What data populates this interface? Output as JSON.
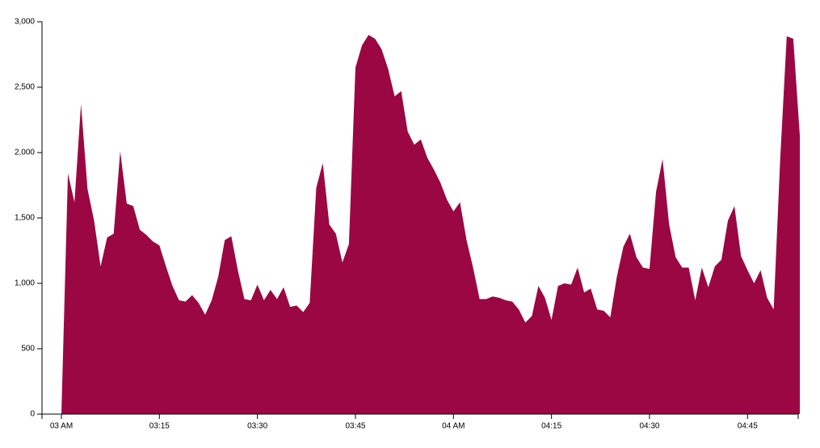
{
  "chart_data": {
    "type": "area",
    "color": "#9b0742",
    "x": [
      "03:00",
      "03:01",
      "03:02",
      "03:03",
      "03:04",
      "03:05",
      "03:06",
      "03:07",
      "03:08",
      "03:09",
      "03:10",
      "03:11",
      "03:12",
      "03:13",
      "03:14",
      "03:15",
      "03:16",
      "03:17",
      "03:18",
      "03:19",
      "03:20",
      "03:21",
      "03:22",
      "03:23",
      "03:24",
      "03:25",
      "03:26",
      "03:27",
      "03:28",
      "03:29",
      "03:30",
      "03:31",
      "03:32",
      "03:33",
      "03:34",
      "03:35",
      "03:36",
      "03:37",
      "03:38",
      "03:39",
      "03:40",
      "03:41",
      "03:42",
      "03:43",
      "03:44",
      "03:45",
      "03:46",
      "03:47",
      "03:48",
      "03:49",
      "03:50",
      "03:51",
      "03:52",
      "03:53",
      "03:54",
      "03:55",
      "03:56",
      "03:57",
      "03:58",
      "03:59",
      "04:00",
      "04:01",
      "04:02",
      "04:03",
      "04:04",
      "04:05",
      "04:06",
      "04:07",
      "04:08",
      "04:09",
      "04:10",
      "04:11",
      "04:12",
      "04:13",
      "04:14",
      "04:15",
      "04:16",
      "04:17",
      "04:18",
      "04:19",
      "04:20",
      "04:21",
      "04:22",
      "04:23",
      "04:24",
      "04:25",
      "04:26",
      "04:27",
      "04:28",
      "04:29",
      "04:30",
      "04:31",
      "04:32",
      "04:33",
      "04:34",
      "04:35",
      "04:36",
      "04:37",
      "04:38",
      "04:39",
      "04:40",
      "04:41",
      "04:42",
      "04:43",
      "04:44",
      "04:45",
      "04:46",
      "04:47",
      "04:48",
      "04:49",
      "04:50",
      "04:51",
      "04:52",
      "04:53"
    ],
    "values": [
      0,
      1840,
      1620,
      2370,
      1720,
      1480,
      1130,
      1350,
      1380,
      2010,
      1610,
      1590,
      1410,
      1370,
      1320,
      1290,
      1130,
      980,
      870,
      860,
      910,
      850,
      760,
      870,
      1050,
      1330,
      1360,
      1100,
      880,
      870,
      990,
      870,
      950,
      880,
      970,
      820,
      830,
      780,
      850,
      1730,
      1920,
      1450,
      1380,
      1160,
      1300,
      2650,
      2820,
      2900,
      2870,
      2790,
      2640,
      2430,
      2470,
      2160,
      2060,
      2100,
      1960,
      1870,
      1770,
      1640,
      1550,
      1620,
      1330,
      1120,
      880,
      880,
      900,
      890,
      870,
      860,
      800,
      700,
      750,
      980,
      890,
      720,
      980,
      1000,
      990,
      1120,
      930,
      960,
      800,
      790,
      740,
      1050,
      1280,
      1380,
      1200,
      1120,
      1110,
      1700,
      1950,
      1450,
      1200,
      1120,
      1120,
      870,
      1120,
      970,
      1130,
      1180,
      1480,
      1590,
      1210,
      1100,
      1000,
      1100,
      890,
      800,
      1950,
      2890,
      2870,
      2130
    ],
    "xlim": [
      "03:00",
      "04:53"
    ],
    "xticks": [
      {
        "value": "03:00",
        "label": "03 AM"
      },
      "03:15",
      "03:30",
      "03:45",
      {
        "value": "04:00",
        "label": "04 AM"
      },
      "04:15",
      "04:30",
      "04:45"
    ],
    "ylim": [
      0,
      3000
    ],
    "yticks": [
      0,
      500,
      {
        "value": 1000,
        "label": "1,000"
      },
      {
        "value": 1500,
        "label": "1,500"
      },
      {
        "value": 2000,
        "label": "2,000"
      },
      {
        "value": 2500,
        "label": "2,500"
      },
      {
        "value": 3000,
        "label": "3,000"
      }
    ]
  }
}
